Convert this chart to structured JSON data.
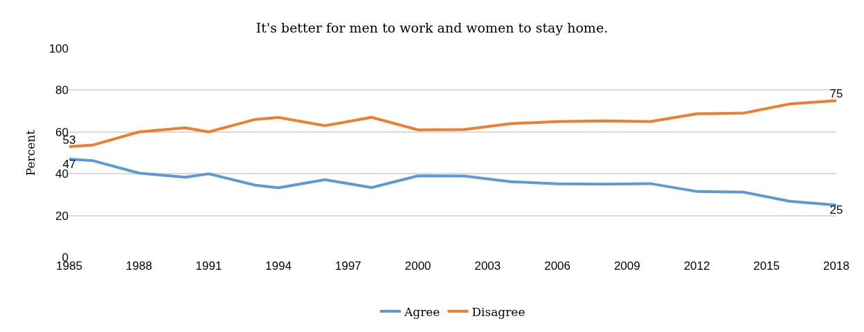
{
  "chart_data": {
    "type": "line",
    "title": "It's better for men to work and women to stay home.",
    "ylabel": "Percent",
    "x": [
      1985,
      1986,
      1988,
      1990,
      1991,
      1993,
      1994,
      1996,
      1998,
      2000,
      2002,
      2004,
      2006,
      2008,
      2010,
      2012,
      2014,
      2016,
      2018
    ],
    "series": [
      {
        "name": "Agree",
        "color": "#5b9bd5",
        "values": [
          47,
          46.3,
          40.3,
          38.3,
          40,
          34.5,
          33.3,
          37.2,
          33.4,
          39,
          38.9,
          36.2,
          35.2,
          35,
          35.3,
          31.5,
          31.2,
          26.8,
          25
        ],
        "value_labels": [
          "47",
          null,
          null,
          null,
          null,
          null,
          null,
          null,
          null,
          null,
          null,
          null,
          null,
          null,
          null,
          null,
          null,
          null,
          "25"
        ]
      },
      {
        "name": "Disagree",
        "color": "#ed7d31",
        "values": [
          53,
          53.7,
          60,
          62,
          60,
          66,
          67,
          63,
          67,
          61,
          61.2,
          64,
          65,
          65.3,
          65,
          68.7,
          69,
          73.4,
          75
        ],
        "value_labels": [
          "53",
          null,
          null,
          null,
          null,
          null,
          null,
          null,
          null,
          null,
          null,
          null,
          null,
          null,
          null,
          null,
          null,
          null,
          "75"
        ]
      }
    ],
    "xlim": [
      1985,
      2018
    ],
    "xticks": [
      1985,
      1988,
      1991,
      1994,
      1997,
      2000,
      2003,
      2006,
      2009,
      2012,
      2015,
      2018
    ],
    "ylim": [
      0,
      100
    ],
    "yticks": [
      0,
      20,
      40,
      60,
      80,
      100
    ],
    "grid": "y",
    "legend": "bottom",
    "marker": "none",
    "line_style": "solid"
  }
}
